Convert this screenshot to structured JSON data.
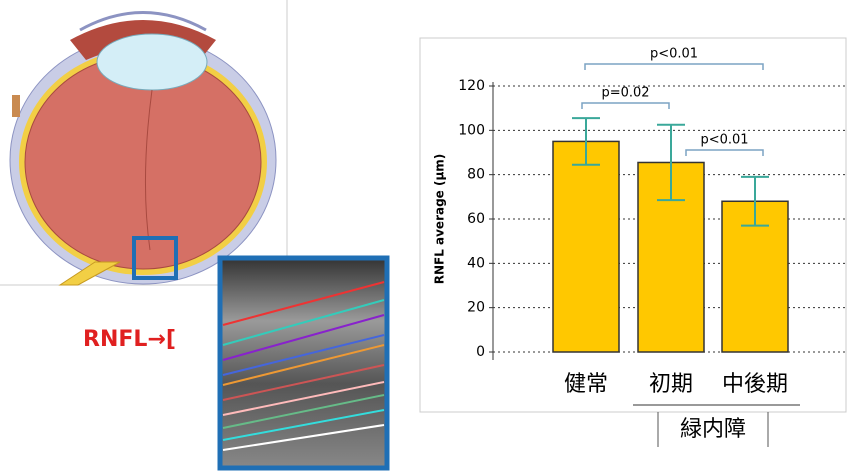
{
  "chart_data": {
    "type": "bar",
    "y_label": "RNFL average (μm)",
    "categories": [
      "健常",
      "初期",
      "中後期"
    ],
    "group_label": "緑内障",
    "values": [
      95,
      85.5,
      68
    ],
    "errors": [
      10.5,
      17,
      11
    ],
    "color": "#ffc800",
    "error_color": "#3aa89a",
    "ylim": [
      0,
      120
    ],
    "yticks": [
      0,
      20,
      40,
      60,
      80,
      100,
      120
    ],
    "grid": true,
    "annotations": [
      "p<0.01",
      "p=0.02",
      "p<0.01"
    ]
  },
  "figure_label": "RNFL→["
}
